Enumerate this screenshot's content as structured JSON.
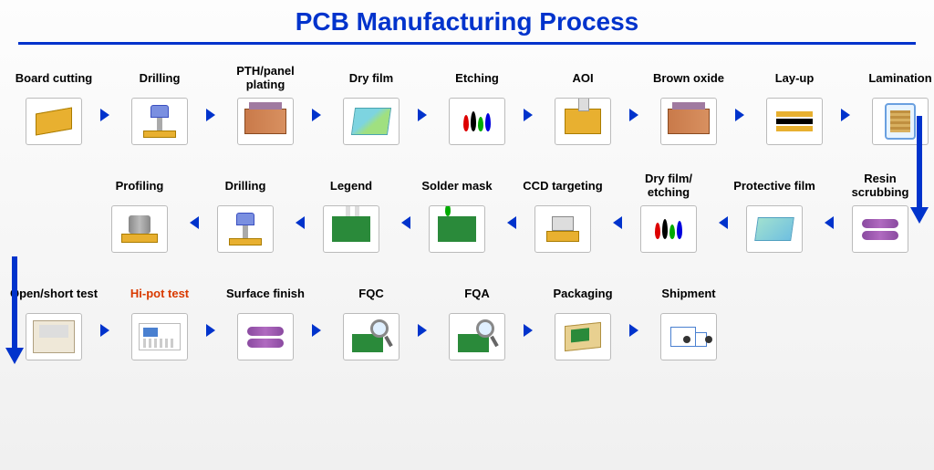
{
  "title": "PCB Manufacturing Process",
  "title_color": "#0033cc",
  "arrow_color": "#0033cc",
  "highlight_color": "#d93a00",
  "label_fontsize": 13,
  "title_fontsize": 28,
  "background_gradient": [
    "#fdfdfd",
    "#f0f0f0"
  ],
  "rows": [
    {
      "direction": "ltr",
      "steps": [
        {
          "label": "Board cutting",
          "icon": "board"
        },
        {
          "label": "Drilling",
          "icon": "drill"
        },
        {
          "label": "PTH/panel plating",
          "icon": "plating"
        },
        {
          "label": "Dry film",
          "icon": "dryfilm"
        },
        {
          "label": "Etching",
          "icon": "etch"
        },
        {
          "label": "AOI",
          "icon": "aoi"
        },
        {
          "label": "Brown oxide",
          "icon": "plating"
        },
        {
          "label": "Lay-up",
          "icon": "layup"
        },
        {
          "label": "Lamination",
          "icon": "lam"
        }
      ]
    },
    {
      "direction": "rtl",
      "steps": [
        {
          "label": "Resin scrubbing",
          "icon": "scrub"
        },
        {
          "label": "Protective film",
          "icon": "protfilm"
        },
        {
          "label": "Dry film/ etching",
          "icon": "etch"
        },
        {
          "label": "CCD targeting",
          "icon": "ccd"
        },
        {
          "label": "Solder mask",
          "icon": "solder"
        },
        {
          "label": "Legend",
          "icon": "legend"
        },
        {
          "label": "Drilling",
          "icon": "drill"
        },
        {
          "label": "Profiling",
          "icon": "profile"
        }
      ]
    },
    {
      "direction": "ltr",
      "steps": [
        {
          "label": "Open/short test",
          "icon": "test"
        },
        {
          "label": "Hi-pot test",
          "icon": "hipot",
          "highlight": true
        },
        {
          "label": "Surface finish",
          "icon": "scrub"
        },
        {
          "label": "FQC",
          "icon": "mag"
        },
        {
          "label": "FQA",
          "icon": "mag"
        },
        {
          "label": "Packaging",
          "icon": "pkg"
        },
        {
          "label": "Shipment",
          "icon": "truck"
        }
      ]
    }
  ],
  "connectors": [
    {
      "side": "right",
      "from_row": 0,
      "to_row": 1
    },
    {
      "side": "left",
      "from_row": 1,
      "to_row": 2
    }
  ]
}
